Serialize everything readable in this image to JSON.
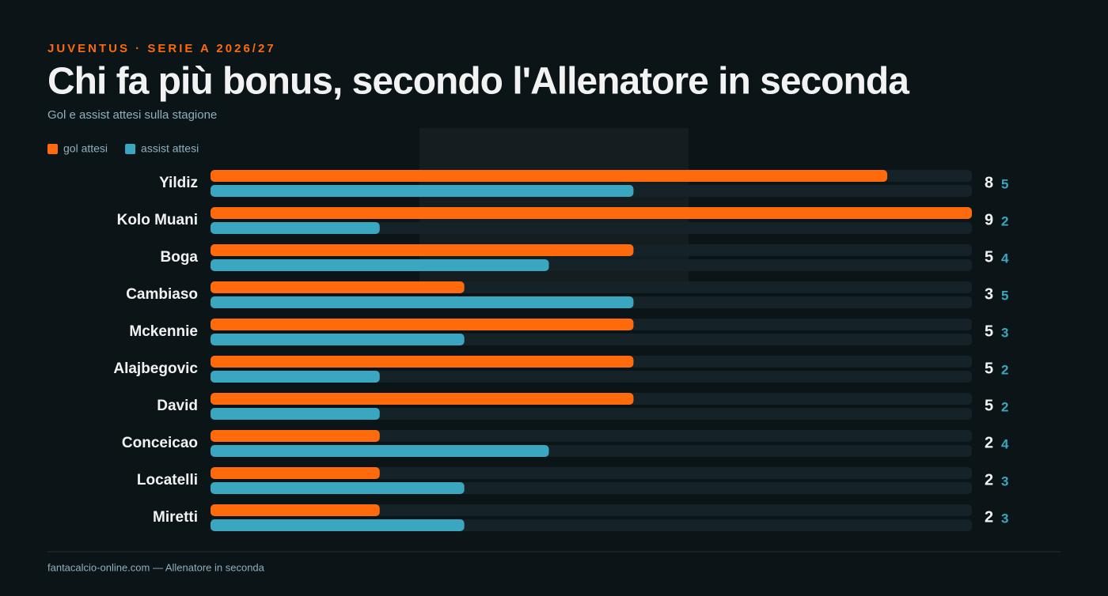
{
  "eyebrow": "JUVENTUS · SERIE A 2026/27",
  "footer": "fantacalcio-online.com — Allenatore in seconda",
  "chart_data": {
    "type": "bar",
    "orientation": "horizontal",
    "title": "Chi fa più bonus, secondo l'Allenatore in seconda",
    "subtitle": "Gol e assist attesi sulla stagione",
    "categories": [
      "Yildiz",
      "Kolo Muani",
      "Boga",
      "Cambiaso",
      "Mckennie",
      "Alajbegovic",
      "David",
      "Conceicao",
      "Locatelli",
      "Miretti"
    ],
    "series": [
      {
        "name": "gol attesi",
        "color": "#ff6a0d",
        "values": [
          8,
          9,
          5,
          3,
          5,
          5,
          5,
          2,
          2,
          2
        ]
      },
      {
        "name": "assist attesi",
        "color": "#3aa6c0",
        "values": [
          5,
          2,
          4,
          5,
          3,
          2,
          2,
          4,
          3,
          3
        ]
      }
    ],
    "xlim": [
      0,
      9
    ]
  }
}
